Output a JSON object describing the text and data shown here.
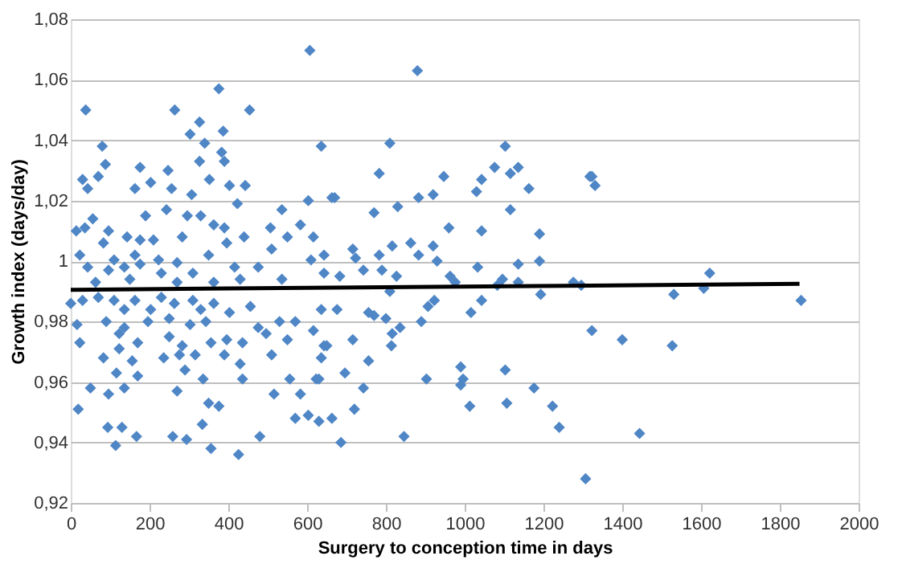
{
  "chart_data": {
    "type": "scatter",
    "xlabel": "Surgery to conception time in days",
    "ylabel": "Growth index (days/day)",
    "xlim": [
      0,
      2000
    ],
    "xticks": [
      0,
      200,
      400,
      600,
      800,
      1000,
      1200,
      1400,
      1600,
      1800,
      2000
    ],
    "ylim": [
      0.92,
      1.08
    ],
    "yticks": [
      {
        "value": 0.92,
        "label": "0,92"
      },
      {
        "value": 0.94,
        "label": "0,94"
      },
      {
        "value": 0.96,
        "label": "0,96"
      },
      {
        "value": 0.98,
        "label": "0,98"
      },
      {
        "value": 1,
        "label": "1"
      },
      {
        "value": 1.02,
        "label": "1,02"
      },
      {
        "value": 1.04,
        "label": "1,04"
      },
      {
        "value": 1.06,
        "label": "1,06"
      },
      {
        "value": 1.08,
        "label": "1,08"
      }
    ],
    "grid": "y",
    "marker": "diamond",
    "series": [
      {
        "color": "#4f86c6",
        "x": [
          607,
          376,
          38,
          264,
          454,
          327,
          387,
          303,
          340,
          80,
          636,
          383,
          327,
          88,
          176,
          390,
          30,
          70,
          203,
          247,
          352,
          163,
          256,
          43,
          307,
          403,
          443,
          603,
          670,
          423,
          243,
          536,
          190,
          296,
          330,
          56,
          14,
          36,
          96,
          143,
          176,
          210,
          283,
          363,
          390,
          440,
          507,
          550,
          583,
          616,
          83,
          396,
          23,
          110,
          163,
          223,
          270,
          350,
          510,
          610,
          643,
          43,
          96,
          136,
          176,
          230,
          310,
          416,
          476,
          643,
          536,
          63,
          150,
          270,
          363,
          430,
          0,
          30,
          70,
          110,
          163,
          230,
          263,
          310,
          363,
          456,
          636,
          136,
          203,
          330,
          16,
          90,
          136,
          196,
          250,
          303,
          343,
          403,
          476,
          530,
          570,
          616,
          23,
          123,
          170,
          250,
          283,
          356,
          396,
          436,
          496,
          550,
          643,
          123,
          276,
          390,
          83,
          236,
          156,
          316,
          510,
          636,
          430,
          116,
          170,
          290,
          336,
          436,
          556,
          630,
          50,
          96,
          136,
          270,
          516,
          583,
          350,
          376,
          19,
          570,
          603,
          630,
          663,
          334,
          94,
          130,
          167,
          259,
          294,
          480,
          114,
          356,
          426,
          880,
          810,
          1103,
          783,
          947,
          1076,
          1136,
          1116,
          1043,
          1030,
          1323,
          1163,
          883,
          920,
          663,
          770,
          830,
          1116,
          960,
          1043,
          1190,
          863,
          716,
          920,
          816,
          783,
          883,
          930,
          723,
          1033,
          1190,
          1136,
          743,
          683,
          827,
          963,
          790,
          1096,
          1136,
          1083,
          976,
          1276,
          1296,
          810,
          1193,
          1043,
          923,
          676,
          907,
          1016,
          756,
          800,
          890,
          836,
          770,
          816,
          1323,
          716,
          650,
          814,
          756,
          990,
          1103,
          623,
          903,
          996,
          696,
          743,
          990,
          1176,
          1013,
          1107,
          1223,
          720,
          1240,
          846,
          686,
          1307,
          1318,
          1331,
          1400,
          1531,
          1527,
          1607,
          1622,
          1854,
          1444
        ],
        "values": [
          1.0697,
          1.057,
          1.05,
          1.05,
          1.05,
          1.046,
          1.043,
          1.042,
          1.039,
          1.038,
          1.038,
          1.036,
          1.033,
          1.032,
          1.031,
          1.033,
          1.027,
          1.028,
          1.026,
          1.03,
          1.027,
          1.024,
          1.024,
          1.024,
          1.022,
          1.025,
          1.025,
          1.02,
          1.021,
          1.019,
          1.017,
          1.017,
          1.015,
          1.015,
          1.015,
          1.014,
          1.01,
          1.011,
          1.01,
          1.008,
          1.007,
          1.007,
          1.008,
          1.012,
          1.011,
          1.008,
          1.011,
          1.008,
          1.012,
          1.008,
          1.006,
          1.006,
          1.002,
          1.0004,
          1.002,
          1.0004,
          0.9995,
          1.002,
          1.004,
          1.0004,
          1.002,
          0.998,
          0.997,
          0.998,
          0.999,
          0.996,
          0.996,
          0.998,
          0.998,
          0.996,
          0.994,
          0.993,
          0.994,
          0.993,
          0.993,
          0.994,
          0.986,
          0.987,
          0.988,
          0.987,
          0.987,
          0.988,
          0.986,
          0.987,
          0.986,
          0.985,
          0.984,
          0.984,
          0.984,
          0.984,
          0.979,
          0.98,
          0.978,
          0.98,
          0.981,
          0.979,
          0.98,
          0.983,
          0.978,
          0.98,
          0.98,
          0.977,
          0.973,
          0.976,
          0.973,
          0.975,
          0.972,
          0.973,
          0.974,
          0.973,
          0.976,
          0.974,
          0.972,
          0.971,
          0.969,
          0.969,
          0.968,
          0.968,
          0.967,
          0.969,
          0.969,
          0.968,
          0.966,
          0.963,
          0.962,
          0.964,
          0.961,
          0.961,
          0.961,
          0.961,
          0.958,
          0.956,
          0.958,
          0.957,
          0.956,
          0.956,
          0.953,
          0.952,
          0.951,
          0.948,
          0.949,
          0.947,
          0.948,
          0.946,
          0.945,
          0.945,
          0.942,
          0.942,
          0.941,
          0.942,
          0.939,
          0.938,
          0.936,
          1.063,
          1.039,
          1.038,
          1.029,
          1.028,
          1.031,
          1.031,
          1.029,
          1.027,
          1.023,
          1.028,
          1.024,
          1.021,
          1.022,
          1.021,
          1.016,
          1.018,
          1.017,
          1.011,
          1.01,
          1.009,
          1.006,
          1.004,
          1.005,
          1.005,
          1.002,
          1.002,
          1.0,
          1.001,
          0.998,
          1.0,
          0.999,
          0.997,
          0.995,
          0.995,
          0.995,
          0.997,
          0.994,
          0.993,
          0.992,
          0.993,
          0.993,
          0.992,
          0.99,
          0.989,
          0.987,
          0.987,
          0.984,
          0.985,
          0.983,
          0.983,
          0.981,
          0.98,
          0.978,
          0.982,
          0.976,
          0.977,
          0.974,
          0.972,
          0.972,
          0.967,
          0.965,
          0.964,
          0.961,
          0.961,
          0.961,
          0.963,
          0.958,
          0.959,
          0.958,
          0.952,
          0.953,
          0.952,
          0.951,
          0.945,
          0.942,
          0.94,
          0.928,
          1.028,
          1.025,
          0.974,
          0.989,
          0.972,
          0.991,
          0.996,
          0.987,
          0.943
        ]
      },
      {
        "type": "line",
        "color": "#000000",
        "marker": "none",
        "line_style": "solid",
        "x": [
          0,
          1850
        ],
        "values": [
          0.9905,
          0.9925
        ]
      }
    ]
  }
}
